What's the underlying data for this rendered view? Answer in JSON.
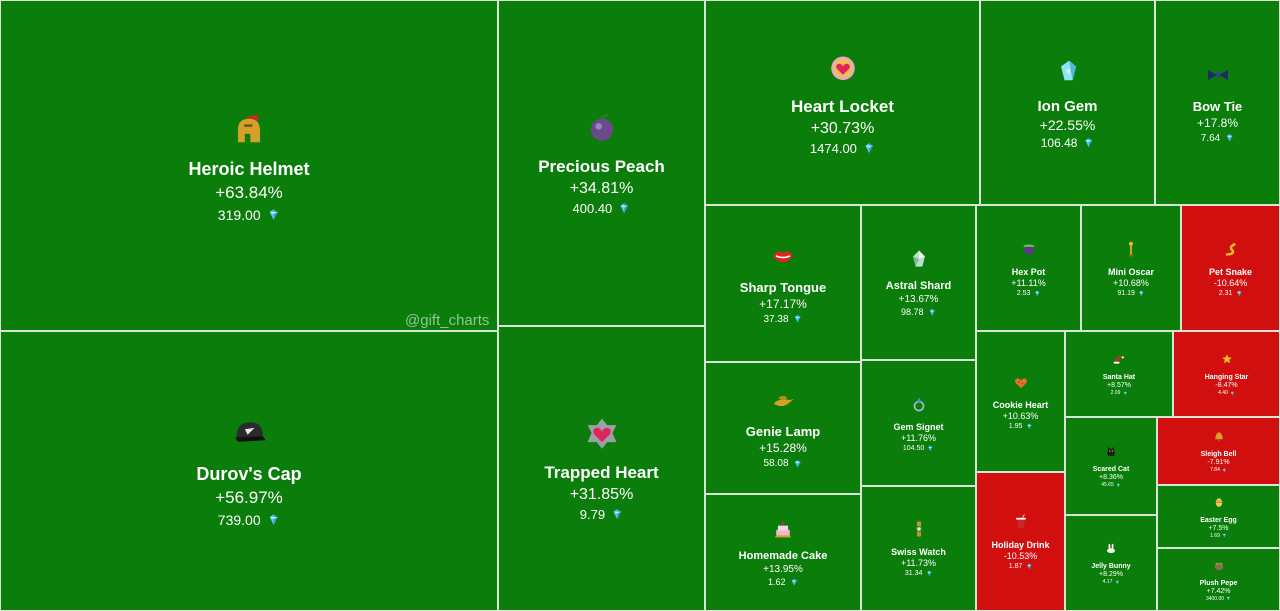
{
  "watermark": "@gift_charts",
  "colors": {
    "up": "#0a7d0a",
    "down": "#d20f0f",
    "gem": "#5ec9f5"
  },
  "chart_data": {
    "type": "heatmap",
    "layout": "treemap",
    "metric": "percent_change",
    "currency_icon": "ton-diamond-icon",
    "items": [
      {
        "name": "Heroic Helmet",
        "change": "+63.84%",
        "price": "319.00",
        "change_value": 63.84,
        "icon": "helmet-icon"
      },
      {
        "name": "Durov's Cap",
        "change": "+56.97%",
        "price": "739.00",
        "change_value": 56.97,
        "icon": "cap-icon"
      },
      {
        "name": "Precious Peach",
        "change": "+34.81%",
        "price": "400.40",
        "change_value": 34.81,
        "icon": "peach-icon"
      },
      {
        "name": "Trapped Heart",
        "change": "+31.85%",
        "price": "9.79",
        "change_value": 31.85,
        "icon": "trapped-heart-icon"
      },
      {
        "name": "Heart Locket",
        "change": "+30.73%",
        "price": "1474.00",
        "change_value": 30.73,
        "icon": "locket-icon"
      },
      {
        "name": "Ion Gem",
        "change": "+22.55%",
        "price": "106.48",
        "change_value": 22.55,
        "icon": "gem-icon"
      },
      {
        "name": "Bow Tie",
        "change": "+17.8%",
        "price": "7.64",
        "change_value": 17.8,
        "icon": "bow-tie-icon"
      },
      {
        "name": "Sharp Tongue",
        "change": "+17.17%",
        "price": "37.38",
        "change_value": 17.17,
        "icon": "lips-icon"
      },
      {
        "name": "Astral Shard",
        "change": "+13.67%",
        "price": "98.78",
        "change_value": 13.67,
        "icon": "shard-icon"
      },
      {
        "name": "Hex Pot",
        "change": "+11.11%",
        "price": "2.53",
        "change_value": 11.11,
        "icon": "cauldron-icon"
      },
      {
        "name": "Mini Oscar",
        "change": "+10.68%",
        "price": "91.19",
        "change_value": 10.68,
        "icon": "trophy-icon"
      },
      {
        "name": "Pet Snake",
        "change": "-10.64%",
        "price": "2.31",
        "change_value": -10.64,
        "icon": "snake-icon"
      },
      {
        "name": "Genie Lamp",
        "change": "+15.28%",
        "price": "58.08",
        "change_value": 15.28,
        "icon": "lamp-icon"
      },
      {
        "name": "Gem Signet",
        "change": "+11.76%",
        "price": "104.50",
        "change_value": 11.76,
        "icon": "ring-icon"
      },
      {
        "name": "Cookie Heart",
        "change": "+10.63%",
        "price": "1.95",
        "change_value": 10.63,
        "icon": "cookie-icon"
      },
      {
        "name": "Santa Hat",
        "change": "+8.57%",
        "price": "2.09",
        "change_value": 8.57,
        "icon": "santa-hat-icon"
      },
      {
        "name": "Hanging Star",
        "change": "-8.47%",
        "price": "4.40",
        "change_value": -8.47,
        "icon": "star-icon"
      },
      {
        "name": "Scared Cat",
        "change": "+8.36%",
        "price": "45.65",
        "change_value": 8.36,
        "icon": "cat-icon"
      },
      {
        "name": "Sleigh Bell",
        "change": "-7.91%",
        "price": "7.84",
        "change_value": -7.91,
        "icon": "bell-icon"
      },
      {
        "name": "Homemade Cake",
        "change": "+13.95%",
        "price": "1.62",
        "change_value": 13.95,
        "icon": "cake-icon"
      },
      {
        "name": "Swiss Watch",
        "change": "+11.73%",
        "price": "31.34",
        "change_value": 11.73,
        "icon": "watch-icon"
      },
      {
        "name": "Holiday Drink",
        "change": "-10.53%",
        "price": "1.87",
        "change_value": -10.53,
        "icon": "drink-icon"
      },
      {
        "name": "Jelly Bunny",
        "change": "+8.29%",
        "price": "4.17",
        "change_value": 8.29,
        "icon": "bunny-icon"
      },
      {
        "name": "Easter Egg",
        "change": "+7.5%",
        "price": "1.69",
        "change_value": 7.5,
        "icon": "egg-icon"
      },
      {
        "name": "Plush Pepe",
        "change": "+7.42%",
        "price": "3400.00",
        "change_value": 7.42,
        "icon": "pepe-icon"
      }
    ]
  }
}
